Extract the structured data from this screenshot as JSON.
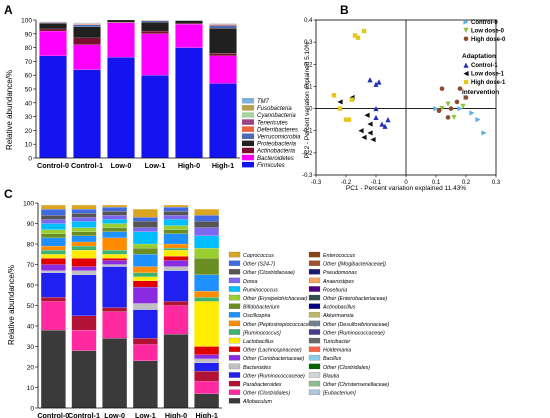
{
  "panel_labels": [
    "A",
    "B",
    "C"
  ],
  "chart_data": [
    {
      "type": "bar",
      "stacked": true,
      "panel": "A",
      "ylabel": "Relative abundance/%",
      "ylim": [
        0,
        100
      ],
      "yticks": [
        0,
        10,
        20,
        30,
        40,
        50,
        60,
        70,
        80,
        90,
        100
      ],
      "categories": [
        "Control-0",
        "Control-1",
        "Low-0",
        "Low-1",
        "High-0",
        "High-1"
      ],
      "legend_position": "right",
      "series": [
        {
          "name": "Firmicutes",
          "color": "#1414f0",
          "values": [
            74,
            64,
            73,
            60,
            80,
            54
          ]
        },
        {
          "name": "Bacteroidetes",
          "color": "#ff00ff",
          "values": [
            18,
            18,
            25,
            30,
            17,
            20
          ]
        },
        {
          "name": "Actinobacteria",
          "color": "#7a1030",
          "values": [
            1.5,
            5,
            0.5,
            2,
            0.5,
            2
          ]
        },
        {
          "name": "Proteobacteria",
          "color": "#202020",
          "values": [
            4,
            8,
            1.5,
            6.5,
            2,
            18
          ]
        },
        {
          "name": "Verrucomicrobia",
          "color": "#4d6ab3",
          "values": [
            0.5,
            1.5,
            0,
            1,
            0.3,
            2
          ]
        },
        {
          "name": "Deferribacteres",
          "color": "#e8643c",
          "values": [
            0.3,
            0.5,
            0,
            0.2,
            0.1,
            0.5
          ]
        },
        {
          "name": "Tenericutes",
          "color": "#994485",
          "values": [
            0.3,
            0.4,
            0,
            0.1,
            0.05,
            0.5
          ]
        },
        {
          "name": "Cyanobacteria",
          "color": "#a8d1a0",
          "values": [
            0.2,
            0.2,
            0,
            0.1,
            0.05,
            0.3
          ]
        },
        {
          "name": "Fusobacteria",
          "color": "#b8a050",
          "values": [
            0.1,
            0.2,
            0,
            0.1,
            0.05,
            0.2
          ]
        },
        {
          "name": "TM7",
          "color": "#7fb0d8",
          "values": [
            0.1,
            0.2,
            0,
            0.1,
            0.05,
            0.2
          ]
        }
      ]
    },
    {
      "type": "scatter",
      "panel": "B",
      "xlabel": "PC1 - Percent variation explained 11.43%",
      "ylabel": "PC2 - Percent variation explained 5.10%",
      "xlim": [
        -0.3,
        0.3
      ],
      "ylim": [
        -0.3,
        0.4
      ],
      "xticks": [
        -0.3,
        -0.2,
        -0.1,
        0.0,
        0.1,
        0.2,
        0.3
      ],
      "yticks": [
        -0.3,
        -0.2,
        -0.1,
        0.0,
        0.1,
        0.2,
        0.3,
        0.4
      ],
      "annotations": [
        "Adaptation",
        "Intervention"
      ],
      "legend_position": "top-right",
      "series": [
        {
          "name": "Control-0",
          "color": "#5aaee0",
          "marker": "triangle-right",
          "points": [
            [
              0.2,
              0.05
            ],
            [
              0.22,
              -0.02
            ],
            [
              0.24,
              -0.05
            ],
            [
              0.26,
              -0.11
            ],
            [
              0.1,
              0.0
            ],
            [
              0.18,
              0.0
            ]
          ]
        },
        {
          "name": "Low dose-0",
          "color": "#8cc63f",
          "marker": "triangle-down",
          "points": [
            [
              0.12,
              0.0
            ],
            [
              0.16,
              -0.04
            ],
            [
              0.19,
              0.01
            ],
            [
              0.14,
              0.02
            ]
          ]
        },
        {
          "name": "High dose-0",
          "color": "#8b4a2b",
          "marker": "circle",
          "points": [
            [
              0.12,
              0.09
            ],
            [
              0.14,
              -0.04
            ],
            [
              0.17,
              0.03
            ],
            [
              0.18,
              0.09
            ],
            [
              0.11,
              -0.01
            ],
            [
              0.15,
              0.0
            ],
            [
              0.2,
              0.05
            ]
          ]
        },
        {
          "name": "Control-1",
          "color": "#1f2fb8",
          "marker": "triangle-up",
          "points": [
            [
              -0.12,
              0.13
            ],
            [
              -0.1,
              0.11
            ],
            [
              -0.09,
              0.12
            ],
            [
              -0.1,
              -0.04
            ],
            [
              -0.08,
              -0.07
            ],
            [
              -0.06,
              -0.05
            ],
            [
              -0.1,
              0.0
            ],
            [
              -0.07,
              -0.08
            ]
          ]
        },
        {
          "name": "Low dose-1",
          "color": "#101010",
          "marker": "triangle-left",
          "points": [
            [
              -0.18,
              0.05
            ],
            [
              -0.15,
              -0.1
            ],
            [
              -0.14,
              -0.13
            ],
            [
              -0.12,
              -0.11
            ],
            [
              -0.11,
              -0.14
            ],
            [
              -0.13,
              -0.03
            ],
            [
              -0.12,
              -0.07
            ],
            [
              -0.22,
              0.03
            ]
          ]
        },
        {
          "name": "High dose-1",
          "color": "#e6c619",
          "marker": "square",
          "points": [
            [
              -0.17,
              0.33
            ],
            [
              -0.14,
              0.35
            ],
            [
              -0.16,
              0.32
            ],
            [
              -0.24,
              0.06
            ],
            [
              -0.2,
              -0.05
            ],
            [
              -0.18,
              0.04
            ],
            [
              -0.22,
              0.0
            ],
            [
              -0.19,
              -0.05
            ]
          ]
        }
      ]
    },
    {
      "type": "bar",
      "stacked": true,
      "panel": "C",
      "ylabel": "Relative abundance/%",
      "ylim": [
        0,
        100
      ],
      "yticks": [
        0,
        10,
        20,
        30,
        40,
        50,
        60,
        70,
        80,
        90,
        100
      ],
      "categories": [
        "Control-0",
        "Control-1",
        "Low-0",
        "Low-1",
        "High-0",
        "High-1"
      ],
      "legend_position": "right",
      "series": [
        {
          "name": "Allobaculum",
          "color": "#3a3a3a",
          "values": [
            38,
            28,
            34,
            23,
            36,
            7
          ]
        },
        {
          "name": "Other (Clostridiales)",
          "color": "#ff2aa0",
          "values": [
            14,
            10,
            13,
            8,
            14,
            6
          ]
        },
        {
          "name": "Parabacteroides",
          "color": "#b21236",
          "values": [
            2,
            7,
            2,
            3,
            2,
            5
          ]
        },
        {
          "name": "Other (Ruminococcaceae)",
          "color": "#2020f0",
          "values": [
            12,
            20,
            20,
            14,
            15,
            4
          ]
        },
        {
          "name": "Bacteroides",
          "color": "#c0c0c0",
          "values": [
            1,
            2,
            1,
            3,
            2,
            2
          ]
        },
        {
          "name": "Other (Coriobacteriaceae)",
          "color": "#8a2be2",
          "values": [
            3,
            2,
            2,
            8,
            3,
            2
          ]
        },
        {
          "name": "Other (Lachnospiraceae)",
          "color": "#e00000",
          "values": [
            3,
            4,
            1,
            3,
            2,
            4
          ]
        },
        {
          "name": "Lactobacillus",
          "color": "#ffec00",
          "values": [
            2,
            4,
            2,
            2,
            3,
            22
          ]
        },
        {
          "name": "[Ruminococcus]",
          "color": "#3cb371",
          "values": [
            2,
            2,
            2,
            2,
            1,
            2
          ]
        },
        {
          "name": "Other (Peptostreptococcaceae)",
          "color": "#ff8c00",
          "values": [
            2,
            2,
            6,
            3,
            2,
            3
          ]
        },
        {
          "name": "Oscillospira",
          "color": "#1e90ff",
          "values": [
            4,
            3,
            3,
            6,
            5,
            8
          ]
        },
        {
          "name": "Bifidobacterium",
          "color": "#6b8e23",
          "values": [
            2,
            2,
            2,
            3,
            2,
            8
          ]
        },
        {
          "name": "Other (Erysipelotrichaceae)",
          "color": "#9acd32",
          "values": [
            2,
            2,
            2,
            2,
            2,
            5
          ]
        },
        {
          "name": "Ruminococcus",
          "color": "#00bfff",
          "values": [
            3,
            3,
            2,
            6,
            3,
            6
          ]
        },
        {
          "name": "Dorea",
          "color": "#7b68ee",
          "values": [
            2,
            2,
            2,
            2,
            2,
            4
          ]
        },
        {
          "name": "Other (Clostridiaceae)",
          "color": "#555555",
          "values": [
            2,
            2,
            2,
            3,
            2,
            3
          ]
        },
        {
          "name": "Other (S24-7)",
          "color": "#4169e1",
          "values": [
            3,
            2,
            2,
            2,
            2,
            3
          ]
        },
        {
          "name": "Coprococcus",
          "color": "#daa520",
          "values": [
            2,
            2,
            1,
            4,
            1,
            3
          ]
        }
      ],
      "legend_items": [
        {
          "name": "Coprococcus",
          "color": "#daa520"
        },
        {
          "name": "Other (S24-7)",
          "color": "#4169e1"
        },
        {
          "name": "Other (Clostridiaceae)",
          "color": "#555555"
        },
        {
          "name": "Dorea",
          "color": "#7b68ee"
        },
        {
          "name": "Ruminococcus",
          "color": "#00bfff"
        },
        {
          "name": "Other (Erysipelotrichaceae)",
          "color": "#9acd32"
        },
        {
          "name": "Bifidobacterium",
          "color": "#6b8e23"
        },
        {
          "name": "Oscillospira",
          "color": "#1e90ff"
        },
        {
          "name": "Other (Peptostreptococcaceae)",
          "color": "#ff8c00"
        },
        {
          "name": "[Ruminococcus]",
          "color": "#3cb371"
        },
        {
          "name": "Lactobacillus",
          "color": "#ffec00"
        },
        {
          "name": "Other (Lachnospiraceae)",
          "color": "#e00000"
        },
        {
          "name": "Other (Coriobacteriaceae)",
          "color": "#8a2be2"
        },
        {
          "name": "Bacteroides",
          "color": "#c0c0c0"
        },
        {
          "name": "Other (Ruminococcaceae)",
          "color": "#2020f0"
        },
        {
          "name": "Parabacteroides",
          "color": "#b21236"
        },
        {
          "name": "Other (Clostridiales)",
          "color": "#ff2aa0"
        },
        {
          "name": "Allobaculum",
          "color": "#3a3a3a"
        },
        {
          "name": "Enterococcus",
          "color": "#8b4513"
        },
        {
          "name": "Other ([Mogibacteriaceae])",
          "color": "#a0522d"
        },
        {
          "name": "Pseudomonas",
          "color": "#191970"
        },
        {
          "name": "Anaerostipes",
          "color": "#f4a460"
        },
        {
          "name": "Roseburia",
          "color": "#4b0082"
        },
        {
          "name": "Other (Enterobacteriaceae)",
          "color": "#2f4f4f"
        },
        {
          "name": "Actinobacillus",
          "color": "#000080"
        },
        {
          "name": "Akkermansia",
          "color": "#bdb76b"
        },
        {
          "name": "Other (Desulfovibrionaceae)",
          "color": "#708090"
        },
        {
          "name": "Other (Ruminococcaceae)",
          "color": "#483d8b"
        },
        {
          "name": "Turicibacter",
          "color": "#696969"
        },
        {
          "name": "Holdemania",
          "color": "#ff6347"
        },
        {
          "name": "Bacillus",
          "color": "#87ceeb"
        },
        {
          "name": "Other (Clostridiales)",
          "color": "#006400"
        },
        {
          "name": "Blautia",
          "color": "#d3d3d3"
        },
        {
          "name": "Other (Christensenellaceae)",
          "color": "#8fbc8f"
        },
        {
          "name": "[Eubacterium]",
          "color": "#b0c4de"
        }
      ]
    }
  ]
}
